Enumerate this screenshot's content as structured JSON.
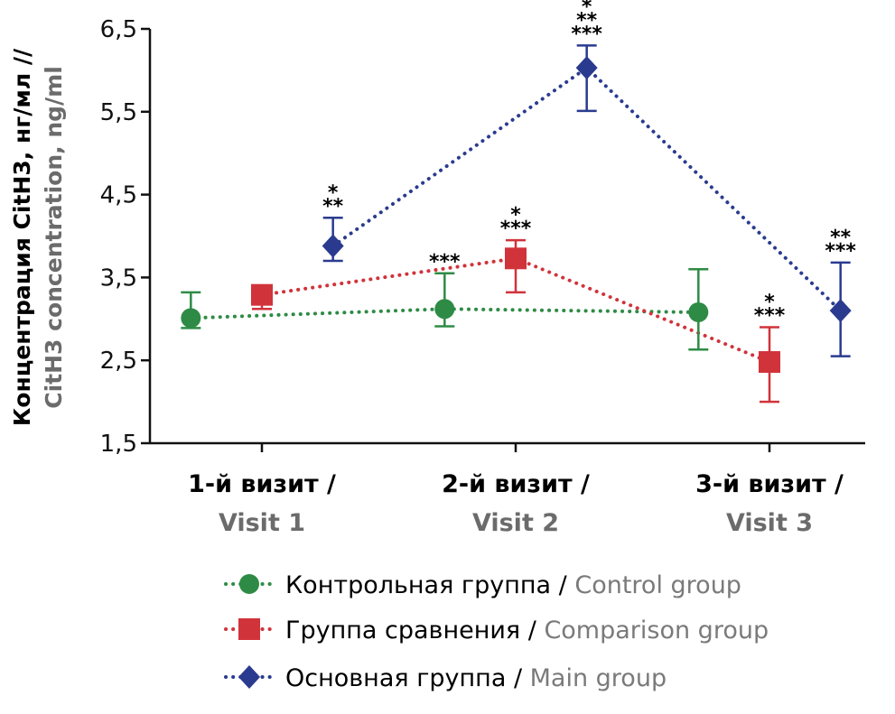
{
  "chart_data": {
    "type": "line",
    "ylabel_ru": "Концентрация CitH3, нг/мл //",
    "ylabel_en": "CitH3 concentration, ng/ml",
    "yticks": [
      "6,5",
      "5,5",
      "4,5",
      "3,5",
      "2,5",
      "1,5"
    ],
    "ylim": [
      1.5,
      6.5
    ],
    "categories": [
      {
        "ru": "1-й визит /",
        "en": "Visit 1"
      },
      {
        "ru": "2-й визит /",
        "en": "Visit 2"
      },
      {
        "ru": "3-й визит /",
        "en": "Visit 3"
      }
    ],
    "series": [
      {
        "key": "control",
        "name_ru": "Контрольная группа",
        "name_en": "Control group",
        "color": "#2e8b45",
        "marker": "circle",
        "offset": -0.28,
        "values": [
          3.01,
          3.12,
          3.08
        ],
        "err_low": [
          2.89,
          2.91,
          2.63
        ],
        "err_high": [
          3.32,
          3.55,
          3.6
        ],
        "annotations": [
          [],
          [
            "***"
          ],
          []
        ]
      },
      {
        "key": "comparison",
        "name_ru": "Группа сравнения",
        "name_en": "Comparison group",
        "color": "#d1333b",
        "marker": "square",
        "offset": 0.0,
        "values": [
          3.29,
          3.73,
          2.48
        ],
        "err_low": [
          3.12,
          3.32,
          2.0
        ],
        "err_high": [
          3.29,
          3.95,
          2.9
        ],
        "annotations": [
          [],
          [
            "*",
            "***"
          ],
          [
            "*",
            "***"
          ]
        ]
      },
      {
        "key": "main",
        "name_ru": "Основная группа",
        "name_en": "Main group",
        "color": "#2a3b8f",
        "marker": "diamond",
        "offset": 0.28,
        "values": [
          3.88,
          6.03,
          3.1
        ],
        "err_low": [
          3.7,
          5.51,
          2.55
        ],
        "err_high": [
          4.22,
          6.3,
          3.68
        ],
        "annotations": [
          [
            "*",
            "**"
          ],
          [
            "*",
            "**",
            "***"
          ],
          [
            "**",
            "***"
          ]
        ]
      }
    ],
    "legend_position": "bottom",
    "grid": false
  }
}
